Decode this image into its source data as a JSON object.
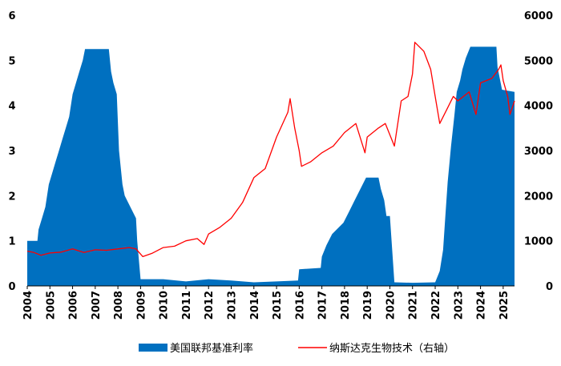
{
  "chart_data": {
    "type": "area",
    "x": [
      "2004",
      "2005",
      "2006",
      "2007",
      "2008",
      "2009",
      "2010",
      "2011",
      "2012",
      "2013",
      "2014",
      "2015",
      "2016",
      "2017",
      "2018",
      "2019",
      "2020",
      "2021",
      "2022",
      "2023",
      "2024",
      "2025"
    ],
    "y_left": {
      "ticks": [
        "0",
        "1",
        "2",
        "3",
        "4",
        "5",
        "6"
      ],
      "range": [
        0,
        6
      ]
    },
    "y_right": {
      "ticks": [
        "0",
        "1000",
        "2000",
        "3000",
        "4000",
        "5000",
        "6000"
      ],
      "range": [
        0,
        6000
      ]
    },
    "grid": false,
    "legend_position": "bottom",
    "series": [
      {
        "name": "美国联邦基准利率",
        "kind": "area",
        "axis": "left",
        "color": "#0070C0",
        "points": [
          [
            2004.0,
            1.0
          ],
          [
            2004.45,
            1.0
          ],
          [
            2004.5,
            1.25
          ],
          [
            2004.65,
            1.5
          ],
          [
            2004.8,
            1.75
          ],
          [
            2004.95,
            2.25
          ],
          [
            2005.1,
            2.5
          ],
          [
            2005.25,
            2.75
          ],
          [
            2005.4,
            3.0
          ],
          [
            2005.55,
            3.25
          ],
          [
            2005.7,
            3.5
          ],
          [
            2005.85,
            3.75
          ],
          [
            2006.0,
            4.25
          ],
          [
            2006.15,
            4.5
          ],
          [
            2006.3,
            4.75
          ],
          [
            2006.45,
            5.0
          ],
          [
            2006.55,
            5.25
          ],
          [
            2007.6,
            5.25
          ],
          [
            2007.7,
            4.75
          ],
          [
            2007.8,
            4.5
          ],
          [
            2007.95,
            4.25
          ],
          [
            2008.05,
            3.0
          ],
          [
            2008.2,
            2.25
          ],
          [
            2008.3,
            2.0
          ],
          [
            2008.8,
            1.5
          ],
          [
            2008.85,
            1.0
          ],
          [
            2009.0,
            0.15
          ],
          [
            2010.0,
            0.15
          ],
          [
            2011.0,
            0.1
          ],
          [
            2012.0,
            0.15
          ],
          [
            2013.0,
            0.12
          ],
          [
            2014.0,
            0.08
          ],
          [
            2015.0,
            0.1
          ],
          [
            2015.95,
            0.12
          ],
          [
            2016.0,
            0.37
          ],
          [
            2016.95,
            0.4
          ],
          [
            2017.0,
            0.65
          ],
          [
            2017.2,
            0.9
          ],
          [
            2017.45,
            1.15
          ],
          [
            2017.95,
            1.4
          ],
          [
            2018.2,
            1.65
          ],
          [
            2018.45,
            1.9
          ],
          [
            2018.7,
            2.15
          ],
          [
            2018.95,
            2.4
          ],
          [
            2019.5,
            2.4
          ],
          [
            2019.6,
            2.15
          ],
          [
            2019.75,
            1.9
          ],
          [
            2019.85,
            1.55
          ],
          [
            2020.0,
            1.55
          ],
          [
            2020.2,
            0.08
          ],
          [
            2021.0,
            0.07
          ],
          [
            2022.0,
            0.08
          ],
          [
            2022.2,
            0.33
          ],
          [
            2022.35,
            0.8
          ],
          [
            2022.45,
            1.55
          ],
          [
            2022.55,
            2.3
          ],
          [
            2022.7,
            3.1
          ],
          [
            2022.85,
            3.8
          ],
          [
            2022.95,
            4.3
          ],
          [
            2023.1,
            4.55
          ],
          [
            2023.2,
            4.8
          ],
          [
            2023.35,
            5.05
          ],
          [
            2023.55,
            5.3
          ],
          [
            2024.7,
            5.3
          ],
          [
            2024.75,
            4.85
          ],
          [
            2024.85,
            4.6
          ],
          [
            2024.95,
            4.35
          ],
          [
            2025.5,
            4.3
          ]
        ]
      },
      {
        "name": "纳斯达克生物技术（右轴）",
        "kind": "line",
        "axis": "right",
        "color": "#FF0000",
        "points": [
          [
            2004.0,
            770
          ],
          [
            2004.3,
            740
          ],
          [
            2004.6,
            680
          ],
          [
            2005.0,
            730
          ],
          [
            2005.5,
            750
          ],
          [
            2006.0,
            820
          ],
          [
            2006.5,
            740
          ],
          [
            2007.0,
            800
          ],
          [
            2007.5,
            790
          ],
          [
            2008.0,
            820
          ],
          [
            2008.5,
            850
          ],
          [
            2008.8,
            820
          ],
          [
            2009.1,
            650
          ],
          [
            2009.5,
            720
          ],
          [
            2010.0,
            850
          ],
          [
            2010.5,
            880
          ],
          [
            2011.0,
            1000
          ],
          [
            2011.5,
            1050
          ],
          [
            2011.8,
            920
          ],
          [
            2012.0,
            1150
          ],
          [
            2012.5,
            1300
          ],
          [
            2013.0,
            1500
          ],
          [
            2013.5,
            1850
          ],
          [
            2014.0,
            2400
          ],
          [
            2014.5,
            2600
          ],
          [
            2015.0,
            3300
          ],
          [
            2015.5,
            3850
          ],
          [
            2015.6,
            4150
          ],
          [
            2015.8,
            3500
          ],
          [
            2016.0,
            3000
          ],
          [
            2016.1,
            2650
          ],
          [
            2016.5,
            2750
          ],
          [
            2017.0,
            2950
          ],
          [
            2017.5,
            3100
          ],
          [
            2018.0,
            3400
          ],
          [
            2018.5,
            3600
          ],
          [
            2018.9,
            2950
          ],
          [
            2019.0,
            3300
          ],
          [
            2019.5,
            3500
          ],
          [
            2019.8,
            3600
          ],
          [
            2020.2,
            3100
          ],
          [
            2020.5,
            4100
          ],
          [
            2020.8,
            4200
          ],
          [
            2021.0,
            4700
          ],
          [
            2021.1,
            5400
          ],
          [
            2021.5,
            5200
          ],
          [
            2021.8,
            4800
          ],
          [
            2022.0,
            4200
          ],
          [
            2022.2,
            3600
          ],
          [
            2022.5,
            3900
          ],
          [
            2022.8,
            4200
          ],
          [
            2023.0,
            4100
          ],
          [
            2023.5,
            4300
          ],
          [
            2023.8,
            3800
          ],
          [
            2024.0,
            4500
          ],
          [
            2024.5,
            4600
          ],
          [
            2024.8,
            4800
          ],
          [
            2024.9,
            4900
          ],
          [
            2025.0,
            4550
          ],
          [
            2025.2,
            4200
          ],
          [
            2025.3,
            3800
          ],
          [
            2025.5,
            4100
          ]
        ]
      }
    ]
  }
}
